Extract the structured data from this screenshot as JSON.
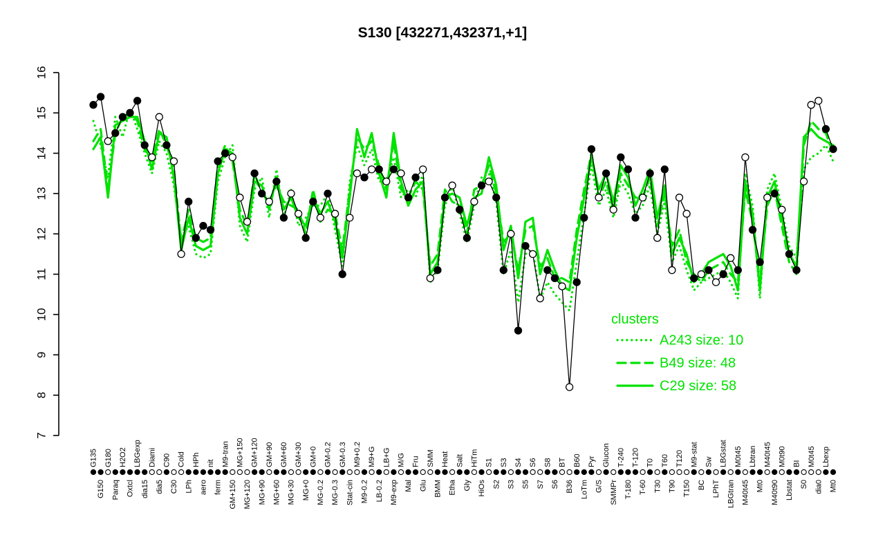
{
  "chart_data": {
    "type": "line",
    "title": "S130 [432271,432371,+1]",
    "xlabel": "",
    "ylabel": "",
    "ylim": [
      7,
      16
    ],
    "yticks": [
      7,
      8,
      9,
      10,
      11,
      12,
      13,
      14,
      15,
      16
    ],
    "grid": false,
    "colors": {
      "cluster": "#00e200",
      "series": "#000000",
      "open_marker_fill": "#ffffff"
    },
    "legend": {
      "title": "clusters",
      "position": "right-lower",
      "entries": [
        {
          "label": "A243 size: 10",
          "style": "dotted"
        },
        {
          "label": "B49 size: 48",
          "style": "dashed"
        },
        {
          "label": "C29 size: 58",
          "style": "solid"
        }
      ]
    },
    "categories": [
      "G135",
      "G150",
      "G180",
      "Paraq",
      "H2O2",
      "Oxtcl",
      "LBGexp",
      "dia15",
      "Diami",
      "dia5",
      "C90",
      "C30",
      "Cold",
      "LPh",
      "HPh",
      "aero",
      "nit",
      "ferm",
      "M9-tran",
      "GM+150",
      "MG+150",
      "MG+120",
      "GM+120",
      "MG+90",
      "GM+90",
      "MG+60",
      "GM+60",
      "MG+30",
      "GM+30",
      "MG+0",
      "GM+0",
      "MG-0.2",
      "GM-0.2",
      "MG-0.3",
      "GM-0.3",
      "Stat-cin",
      "M9+0.2",
      "M9-0.2",
      "M9+G",
      "LB-0.2",
      "LB+G",
      "M9-exp",
      "M/G",
      "Mal",
      "Fru",
      "Glu",
      "SMM",
      "BMM",
      "Heat",
      "Etha",
      "Salt",
      "Gly",
      "HiTm",
      "HiOs",
      "S1",
      "S2",
      "S3",
      "S3",
      "S4",
      "S5",
      "S6",
      "S7",
      "S8",
      "S6",
      "BT",
      "B36",
      "B60",
      "LoTm",
      "Pyr",
      "G/S",
      "Glucon",
      "SMMPr",
      "T-240",
      "T-180",
      "T-120",
      "T-60",
      "T0",
      "T30",
      "T60",
      "T90",
      "T120",
      "T150",
      "M9-stat",
      "BC",
      "Sw",
      "LPhT",
      "LBGstat",
      "LBGtran",
      "M0t45",
      "M40t45",
      "Lbtran",
      "Mt0",
      "M40t45",
      "M40t90",
      "M0t90",
      "Lbstat",
      "BI",
      "S0",
      "M0t45",
      "dia0",
      "Lbexp",
      "Mt0"
    ],
    "marker_fill_legend": {
      "f": "filled-black-circle",
      "o": "open-white-circle"
    },
    "series": [
      {
        "name": "A243",
        "style": "dotted",
        "values": [
          14.8,
          14.2,
          13.4,
          14.9,
          14.4,
          15.1,
          14.6,
          14.0,
          13.5,
          14.3,
          14.0,
          13.2,
          11.9,
          12.2,
          11.5,
          11.4,
          11.5,
          13.3,
          13.9,
          14.2,
          12.2,
          11.8,
          13.1,
          13.4,
          12.4,
          13.6,
          12.4,
          13.1,
          12.2,
          12.4,
          12.7,
          12.7,
          13.0,
          12.1,
          11.2,
          13.3,
          14.2,
          13.7,
          14.1,
          13.3,
          13.3,
          13.9,
          12.9,
          13.1,
          12.9,
          13.5,
          10.8,
          11.1,
          12.7,
          13.2,
          12.5,
          11.8,
          12.7,
          13.4,
          13.5,
          12.8,
          11.0,
          11.6,
          10.3,
          11.5,
          11.6,
          10.4,
          10.8,
          10.5,
          10.3,
          10.1,
          11.3,
          12.5,
          13.7,
          12.7,
          13.1,
          12.4,
          13.3,
          13.0,
          12.5,
          12.7,
          13.2,
          12.0,
          12.8,
          11.3,
          11.7,
          11.1,
          10.6,
          10.8,
          10.9,
          11.0,
          11.1,
          10.8,
          10.4,
          13.5,
          12.7,
          10.4,
          13.1,
          13.5,
          12.6,
          11.7,
          11.4,
          13.6,
          13.9,
          14.0,
          14.2,
          13.8
        ]
      },
      {
        "name": "B49",
        "style": "dashed",
        "values": [
          14.3,
          14.6,
          13.1,
          14.5,
          14.9,
          15.0,
          14.8,
          14.1,
          13.8,
          14.6,
          14.2,
          13.6,
          11.8,
          12.6,
          11.9,
          11.8,
          11.9,
          13.7,
          14.2,
          13.8,
          12.6,
          12.2,
          13.5,
          13.0,
          12.8,
          13.2,
          12.8,
          12.7,
          12.6,
          12.0,
          13.1,
          12.3,
          12.6,
          12.5,
          11.6,
          13.1,
          14.4,
          14.1,
          14.3,
          13.7,
          13.1,
          14.3,
          13.1,
          12.9,
          13.3,
          13.1,
          11.2,
          11.5,
          13.1,
          12.8,
          12.7,
          12.0,
          13.1,
          13.2,
          13.7,
          13.0,
          11.8,
          12.0,
          11.1,
          12.1,
          12.2,
          11.2,
          11.4,
          10.9,
          10.9,
          10.8,
          12.1,
          13.1,
          14.0,
          12.9,
          13.3,
          12.6,
          13.5,
          13.2,
          12.9,
          12.9,
          13.4,
          12.2,
          13.0,
          11.7,
          12.1,
          11.3,
          11.0,
          10.8,
          11.1,
          11.2,
          11.3,
          11.0,
          10.8,
          13.1,
          12.3,
          10.8,
          12.7,
          13.1,
          12.2,
          11.3,
          11.0,
          14.2,
          14.8,
          14.6,
          14.5,
          14.0
        ]
      },
      {
        "name": "C29",
        "style": "solid",
        "values": [
          14.1,
          14.4,
          12.9,
          14.7,
          14.8,
          14.9,
          14.9,
          14.3,
          13.6,
          14.5,
          14.4,
          13.4,
          11.6,
          12.4,
          11.7,
          11.6,
          11.7,
          13.5,
          14.1,
          14.0,
          12.4,
          12.0,
          13.3,
          13.2,
          12.6,
          13.4,
          12.6,
          12.9,
          12.4,
          12.2,
          12.9,
          12.5,
          12.8,
          12.3,
          11.4,
          12.9,
          14.6,
          13.9,
          14.5,
          13.5,
          12.9,
          14.5,
          13.3,
          12.7,
          13.1,
          13.3,
          11.0,
          11.3,
          12.9,
          13.0,
          12.9,
          12.2,
          12.9,
          13.0,
          13.9,
          13.2,
          11.6,
          12.2,
          10.9,
          12.3,
          12.4,
          11.0,
          11.6,
          11.1,
          10.7,
          10.6,
          11.9,
          12.9,
          13.9,
          13.1,
          13.5,
          12.8,
          13.7,
          13.4,
          12.7,
          13.1,
          13.6,
          12.4,
          13.2,
          11.5,
          11.9,
          11.5,
          10.8,
          11.0,
          11.3,
          11.4,
          11.5,
          11.2,
          10.6,
          13.3,
          12.5,
          10.6,
          12.9,
          13.3,
          12.4,
          11.5,
          11.2,
          14.4,
          14.6,
          14.4,
          14.3,
          14.2
        ]
      },
      {
        "name": "S130",
        "style": "markers",
        "values": [
          15.2,
          15.4,
          14.3,
          14.5,
          14.9,
          15.0,
          15.3,
          14.2,
          13.9,
          14.9,
          14.2,
          13.8,
          11.5,
          12.8,
          11.9,
          12.2,
          12.1,
          13.8,
          14.0,
          13.9,
          12.9,
          12.3,
          13.5,
          13.0,
          12.8,
          13.3,
          12.4,
          13.0,
          12.5,
          11.9,
          12.8,
          12.4,
          13.0,
          12.5,
          11.0,
          12.4,
          13.5,
          13.4,
          13.6,
          13.6,
          13.3,
          13.6,
          13.5,
          12.9,
          13.4,
          13.6,
          10.9,
          11.1,
          12.9,
          13.2,
          12.6,
          11.9,
          12.8,
          13.2,
          13.3,
          12.9,
          11.1,
          12.0,
          9.6,
          11.7,
          11.5,
          10.4,
          11.1,
          10.9,
          10.7,
          8.2,
          10.8,
          12.4,
          14.1,
          12.9,
          13.5,
          12.6,
          13.9,
          13.6,
          12.4,
          12.9,
          13.5,
          11.9,
          13.6,
          11.1,
          12.9,
          12.5,
          10.9,
          11.0,
          11.1,
          10.8,
          11.0,
          11.4,
          11.1,
          13.9,
          12.1,
          11.3,
          12.9,
          13.0,
          12.6,
          11.5,
          11.1,
          13.3,
          15.2,
          15.3,
          14.6,
          14.1
        ],
        "marker_fill": [
          "f",
          "f",
          "o",
          "f",
          "f",
          "f",
          "f",
          "f",
          "o",
          "o",
          "f",
          "o",
          "o",
          "f",
          "f",
          "f",
          "f",
          "f",
          "f",
          "o",
          "o",
          "o",
          "f",
          "f",
          "o",
          "f",
          "f",
          "o",
          "o",
          "f",
          "f",
          "o",
          "f",
          "o",
          "f",
          "o",
          "o",
          "f",
          "o",
          "f",
          "o",
          "f",
          "o",
          "f",
          "f",
          "o",
          "o",
          "f",
          "f",
          "o",
          "f",
          "f",
          "o",
          "f",
          "o",
          "f",
          "f",
          "o",
          "f",
          "f",
          "o",
          "o",
          "f",
          "f",
          "o",
          "o",
          "f",
          "f",
          "f",
          "o",
          "f",
          "o",
          "f",
          "f",
          "f",
          "o",
          "f",
          "o",
          "f",
          "o",
          "o",
          "o",
          "f",
          "o",
          "f",
          "o",
          "f",
          "o",
          "f",
          "o",
          "f",
          "f",
          "o",
          "f",
          "o",
          "f",
          "f",
          "o",
          "o",
          "o",
          "f",
          "f"
        ]
      }
    ]
  }
}
